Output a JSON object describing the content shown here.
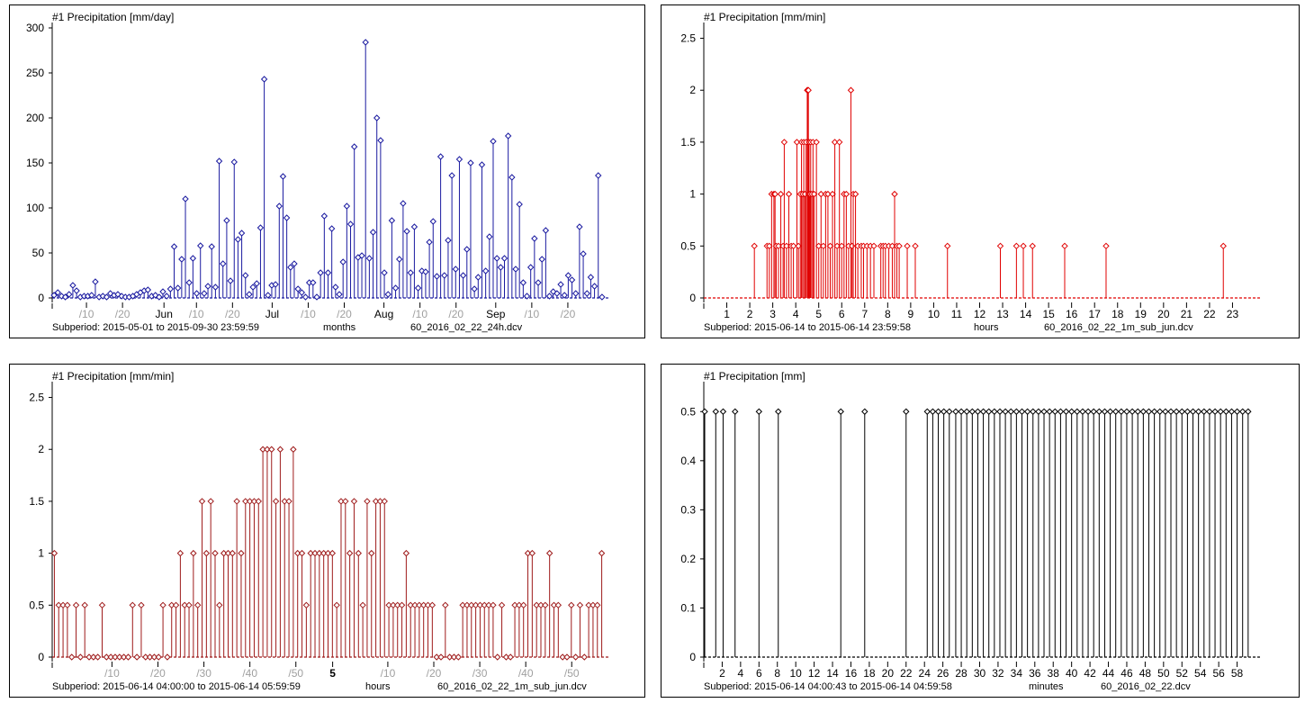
{
  "chart_data": [
    {
      "type": "stem",
      "title": "#1  Precipitation [mm/day]",
      "color": "#1a1aa0",
      "ylim": [
        0,
        300
      ],
      "yticks": [
        0,
        50,
        100,
        150,
        200,
        250,
        300
      ],
      "x_range": [
        0,
        153
      ],
      "x_tick_labels": [
        {
          "x": 9.5,
          "label": "/10",
          "muted": true
        },
        {
          "x": 19.5,
          "label": "/20",
          "muted": true
        },
        {
          "x": 31,
          "label": "Jun",
          "muted": false
        },
        {
          "x": 40,
          "label": "/10",
          "muted": true
        },
        {
          "x": 50,
          "label": "/20",
          "muted": true
        },
        {
          "x": 61,
          "label": "Jul",
          "muted": false
        },
        {
          "x": 71,
          "label": "/10",
          "muted": true
        },
        {
          "x": 81,
          "label": "/20",
          "muted": true
        },
        {
          "x": 92,
          "label": "Aug",
          "muted": false
        },
        {
          "x": 102,
          "label": "/10",
          "muted": true
        },
        {
          "x": 112,
          "label": "/20",
          "muted": true
        },
        {
          "x": 123,
          "label": "Sep",
          "muted": false
        },
        {
          "x": 133,
          "label": "/10",
          "muted": true
        },
        {
          "x": 143,
          "label": "/20",
          "muted": true
        }
      ],
      "values": [
        3,
        6,
        2,
        1,
        4,
        14,
        8,
        1,
        2,
        2,
        3,
        18,
        1,
        2,
        1,
        5,
        3,
        4,
        2,
        1,
        1,
        2,
        4,
        6,
        8,
        9,
        2,
        3,
        1,
        7,
        2,
        10,
        57,
        11,
        43,
        110,
        17,
        44,
        5,
        58,
        5,
        13,
        57,
        12,
        152,
        38,
        86,
        19,
        151,
        65,
        72,
        25,
        4,
        12,
        16,
        78,
        243,
        3,
        14,
        15,
        102,
        135,
        89,
        34,
        38,
        10,
        6,
        1,
        17,
        17,
        1,
        28,
        91,
        28,
        77,
        12,
        4,
        40,
        102,
        82,
        168,
        45,
        47,
        284,
        44,
        73,
        200,
        175,
        28,
        4,
        86,
        11,
        43,
        105,
        74,
        28,
        79,
        11,
        30,
        29,
        62,
        85,
        24,
        157,
        25,
        64,
        136,
        32,
        154,
        25,
        54,
        150,
        10,
        23,
        148,
        30,
        68,
        174,
        44,
        34,
        44,
        180,
        134,
        32,
        104,
        17,
        2,
        34,
        66,
        17,
        43,
        75,
        2,
        7,
        5,
        15,
        3,
        25,
        20,
        5,
        79,
        49,
        5,
        23,
        13,
        136,
        1
      ],
      "footer": {
        "subperiod": "Subperiod: 2015-05-01 to 2015-09-30 23:59:59",
        "units": "months",
        "file": "60_2016_02_22_24h.dcv"
      }
    },
    {
      "type": "stem",
      "title": "#1  Precipitation [mm/min]",
      "color": "#e00000",
      "ylim": [
        0,
        2.6
      ],
      "yticks": [
        0,
        0.5,
        1,
        1.5,
        2,
        2.5
      ],
      "x_range": [
        0,
        24
      ],
      "x_tick_labels": [
        {
          "x": 1,
          "label": "1"
        },
        {
          "x": 2,
          "label": "2"
        },
        {
          "x": 3,
          "label": "3"
        },
        {
          "x": 4,
          "label": "4"
        },
        {
          "x": 5,
          "label": "5"
        },
        {
          "x": 6,
          "label": "6"
        },
        {
          "x": 7,
          "label": "7"
        },
        {
          "x": 8,
          "label": "8"
        },
        {
          "x": 9,
          "label": "9"
        },
        {
          "x": 10,
          "label": "10"
        },
        {
          "x": 11,
          "label": "11"
        },
        {
          "x": 12,
          "label": "12"
        },
        {
          "x": 13,
          "label": "13"
        },
        {
          "x": 14,
          "label": "14"
        },
        {
          "x": 15,
          "label": "15"
        },
        {
          "x": 16,
          "label": "16"
        },
        {
          "x": 17,
          "label": "17"
        },
        {
          "x": 18,
          "label": "18"
        },
        {
          "x": 19,
          "label": "19"
        },
        {
          "x": 20,
          "label": "20"
        },
        {
          "x": 21,
          "label": "21"
        },
        {
          "x": 22,
          "label": "22"
        },
        {
          "x": 23,
          "label": "23"
        }
      ],
      "points": [
        [
          2.2,
          0.5
        ],
        [
          2.75,
          0.5
        ],
        [
          2.85,
          0.5
        ],
        [
          2.95,
          1
        ],
        [
          3.05,
          1
        ],
        [
          3.1,
          1
        ],
        [
          3.15,
          0.5
        ],
        [
          3.25,
          0.5
        ],
        [
          3.35,
          1
        ],
        [
          3.45,
          0.5
        ],
        [
          3.5,
          1.5
        ],
        [
          3.6,
          0.5
        ],
        [
          3.7,
          1
        ],
        [
          3.8,
          0.5
        ],
        [
          3.9,
          0.5
        ],
        [
          4.05,
          1.5
        ],
        [
          4.12,
          0.5
        ],
        [
          4.2,
          1
        ],
        [
          4.25,
          1.5
        ],
        [
          4.3,
          1
        ],
        [
          4.35,
          1.5
        ],
        [
          4.4,
          1
        ],
        [
          4.45,
          1.5
        ],
        [
          4.5,
          2
        ],
        [
          4.52,
          2
        ],
        [
          4.55,
          2
        ],
        [
          4.58,
          1.5
        ],
        [
          4.62,
          1
        ],
        [
          4.65,
          1.5
        ],
        [
          4.7,
          1
        ],
        [
          4.75,
          1.5
        ],
        [
          4.8,
          1
        ],
        [
          4.9,
          1.5
        ],
        [
          5.0,
          0.5
        ],
        [
          5.1,
          1
        ],
        [
          5.2,
          0.5
        ],
        [
          5.3,
          1
        ],
        [
          5.4,
          1
        ],
        [
          5.5,
          0.5
        ],
        [
          5.6,
          1
        ],
        [
          5.7,
          1.5
        ],
        [
          5.8,
          0.5
        ],
        [
          5.9,
          1.5
        ],
        [
          6.0,
          0.5
        ],
        [
          6.1,
          1
        ],
        [
          6.2,
          1
        ],
        [
          6.3,
          0.5
        ],
        [
          6.4,
          2
        ],
        [
          6.45,
          0.5
        ],
        [
          6.5,
          1
        ],
        [
          6.6,
          1
        ],
        [
          6.7,
          0.5
        ],
        [
          6.85,
          0.5
        ],
        [
          6.95,
          0.5
        ],
        [
          7.1,
          0.5
        ],
        [
          7.25,
          0.5
        ],
        [
          7.4,
          0.5
        ],
        [
          7.7,
          0.5
        ],
        [
          7.8,
          0.5
        ],
        [
          7.9,
          0.5
        ],
        [
          8.05,
          0.5
        ],
        [
          8.2,
          0.5
        ],
        [
          8.3,
          1
        ],
        [
          8.4,
          0.5
        ],
        [
          8.5,
          0.5
        ],
        [
          8.85,
          0.5
        ],
        [
          9.2,
          0.5
        ],
        [
          10.6,
          0.5
        ],
        [
          12.9,
          0.5
        ],
        [
          13.6,
          0.5
        ],
        [
          13.9,
          0.5
        ],
        [
          14.3,
          0.5
        ],
        [
          15.7,
          0.5
        ],
        [
          17.5,
          0.5
        ],
        [
          22.6,
          0.5
        ]
      ],
      "footer": {
        "subperiod": "Subperiod: 2015-06-14 to 2015-06-14 23:59:58",
        "units": "hours",
        "file": "60_2016_02_22_1m_sub_jun.dcv"
      }
    },
    {
      "type": "stem",
      "title": "#1  Precipitation [mm/min]",
      "color": "#9e1a1a",
      "ylim": [
        0,
        2.6
      ],
      "yticks": [
        0,
        0.5,
        1,
        1.5,
        2,
        2.5
      ],
      "x_range": [
        0,
        120
      ],
      "x_tick_labels": [
        {
          "x": 13,
          "label": "/10",
          "muted": true
        },
        {
          "x": 23,
          "label": "/20",
          "muted": true
        },
        {
          "x": 33,
          "label": "/30",
          "muted": true
        },
        {
          "x": 43,
          "label": "/40",
          "muted": true
        },
        {
          "x": 53,
          "label": "/50",
          "muted": true
        },
        {
          "x": 61,
          "label": "5",
          "muted": false,
          "bold": true
        },
        {
          "x": 73,
          "label": "/10",
          "muted": true
        },
        {
          "x": 83,
          "label": "/20",
          "muted": true
        },
        {
          "x": 93,
          "label": "/30",
          "muted": true
        },
        {
          "x": 103,
          "label": "/40",
          "muted": true
        },
        {
          "x": 113,
          "label": "/50",
          "muted": true
        }
      ],
      "values": [
        1,
        0.5,
        0.5,
        0.5,
        0,
        0.5,
        0,
        0.5,
        0,
        0,
        0,
        0.5,
        0,
        0,
        0,
        0,
        0,
        0,
        0.5,
        0,
        0.5,
        0,
        0,
        0,
        0,
        0.5,
        0,
        0.5,
        0.5,
        1,
        0.5,
        0.5,
        1,
        0.5,
        1.5,
        1,
        1.5,
        1,
        0.5,
        1,
        1,
        1,
        1.5,
        1,
        1.5,
        1.5,
        1.5,
        1.5,
        2,
        2,
        2,
        1.5,
        2,
        1.5,
        1.5,
        2,
        1,
        1,
        0.5,
        1,
        1,
        1,
        1,
        1,
        1,
        0.5,
        1.5,
        1.5,
        1,
        1.5,
        1,
        0.5,
        1.5,
        1,
        1.5,
        1.5,
        1.5,
        0.5,
        0.5,
        0.5,
        0.5,
        1,
        0.5,
        0.5,
        0.5,
        0.5,
        0.5,
        0.5,
        0,
        0,
        0.5,
        0,
        0,
        0,
        0.5,
        0.5,
        0.5,
        0.5,
        0.5,
        0.5,
        0.5,
        0.5,
        0,
        0.5,
        0,
        0,
        0.5,
        0.5,
        0.5,
        1,
        1,
        0.5,
        0.5,
        0.5,
        1,
        0.5,
        0.5,
        0,
        0,
        0.5,
        0,
        0.5,
        0,
        0.5,
        0.5,
        0.5,
        1
      ],
      "footer": {
        "subperiod": "Subperiod: 2015-06-14 04:00:00 to 2015-06-14 05:59:59",
        "units": "hours",
        "file": "60_2016_02_22_1m_sub_jun.dcv"
      }
    },
    {
      "type": "stem",
      "title": "#1  Precipitation [mm]",
      "color": "#000000",
      "ylim": [
        0,
        0.55
      ],
      "yticks": [
        0,
        0.1,
        0.2,
        0.3,
        0.4,
        0.5
      ],
      "ytick_labels": [
        "0",
        "0.1",
        "0.2",
        "0.3",
        "0.4",
        "0.5"
      ],
      "x_range": [
        0,
        60
      ],
      "x_tick_labels": [
        {
          "x": 2,
          "label": "2"
        },
        {
          "x": 4,
          "label": "4"
        },
        {
          "x": 6,
          "label": "6"
        },
        {
          "x": 8,
          "label": "8"
        },
        {
          "x": 10,
          "label": "10"
        },
        {
          "x": 12,
          "label": "12"
        },
        {
          "x": 14,
          "label": "14"
        },
        {
          "x": 16,
          "label": "16"
        },
        {
          "x": 18,
          "label": "18"
        },
        {
          "x": 20,
          "label": "20"
        },
        {
          "x": 22,
          "label": "22"
        },
        {
          "x": 24,
          "label": "24"
        },
        {
          "x": 26,
          "label": "26"
        },
        {
          "x": 28,
          "label": "28"
        },
        {
          "x": 30,
          "label": "30"
        },
        {
          "x": 32,
          "label": "32"
        },
        {
          "x": 34,
          "label": "34"
        },
        {
          "x": 36,
          "label": "36"
        },
        {
          "x": 38,
          "label": "38"
        },
        {
          "x": 40,
          "label": "40"
        },
        {
          "x": 42,
          "label": "42"
        },
        {
          "x": 44,
          "label": "44"
        },
        {
          "x": 46,
          "label": "46"
        },
        {
          "x": 48,
          "label": "48"
        },
        {
          "x": 50,
          "label": "50"
        },
        {
          "x": 52,
          "label": "52"
        },
        {
          "x": 54,
          "label": "54"
        },
        {
          "x": 56,
          "label": "56"
        },
        {
          "x": 58,
          "label": "58"
        }
      ],
      "points": [
        [
          0.1,
          0.5
        ],
        [
          1.3,
          0.5
        ],
        [
          2.1,
          0.5
        ],
        [
          3.4,
          0.5
        ],
        [
          6.0,
          0.5
        ],
        [
          8.1,
          0.5
        ],
        [
          14.9,
          0.5
        ],
        [
          17.5,
          0.5
        ],
        [
          22.0,
          0.5
        ],
        [
          24.3,
          0.5
        ],
        [
          24.9,
          0.5
        ],
        [
          25.5,
          0.5
        ],
        [
          26.1,
          0.5
        ],
        [
          26.7,
          0.5
        ],
        [
          27.4,
          0.5
        ],
        [
          28.0,
          0.5
        ],
        [
          28.6,
          0.5
        ],
        [
          29.2,
          0.5
        ],
        [
          29.8,
          0.5
        ],
        [
          30.4,
          0.5
        ],
        [
          31.0,
          0.5
        ],
        [
          31.6,
          0.5
        ],
        [
          32.2,
          0.5
        ],
        [
          32.8,
          0.5
        ],
        [
          33.4,
          0.5
        ],
        [
          34.0,
          0.5
        ],
        [
          34.6,
          0.5
        ],
        [
          35.2,
          0.5
        ],
        [
          35.8,
          0.5
        ],
        [
          36.4,
          0.5
        ],
        [
          37.0,
          0.5
        ],
        [
          37.6,
          0.5
        ],
        [
          38.2,
          0.5
        ],
        [
          38.8,
          0.5
        ],
        [
          39.4,
          0.5
        ],
        [
          40.0,
          0.5
        ],
        [
          40.6,
          0.5
        ],
        [
          41.2,
          0.5
        ],
        [
          41.8,
          0.5
        ],
        [
          42.4,
          0.5
        ],
        [
          43.0,
          0.5
        ],
        [
          43.6,
          0.5
        ],
        [
          44.2,
          0.5
        ],
        [
          44.8,
          0.5
        ],
        [
          45.4,
          0.5
        ],
        [
          46.0,
          0.5
        ],
        [
          46.6,
          0.5
        ],
        [
          47.2,
          0.5
        ],
        [
          47.8,
          0.5
        ],
        [
          48.4,
          0.5
        ],
        [
          49.0,
          0.5
        ],
        [
          49.6,
          0.5
        ],
        [
          50.2,
          0.5
        ],
        [
          50.8,
          0.5
        ],
        [
          51.4,
          0.5
        ],
        [
          52.0,
          0.5
        ],
        [
          52.6,
          0.5
        ],
        [
          53.2,
          0.5
        ],
        [
          53.8,
          0.5
        ],
        [
          54.4,
          0.5
        ],
        [
          55.0,
          0.5
        ],
        [
          55.6,
          0.5
        ],
        [
          56.2,
          0.5
        ],
        [
          56.8,
          0.5
        ],
        [
          57.4,
          0.5
        ],
        [
          58.0,
          0.5
        ],
        [
          58.6,
          0.5
        ],
        [
          59.2,
          0.5
        ]
      ],
      "footer": {
        "subperiod": "Subperiod: 2015-06-14 04:00:43 to 2015-06-14 04:59:58",
        "units": "minutes",
        "file": "60_2016_02_22.dcv"
      }
    }
  ]
}
